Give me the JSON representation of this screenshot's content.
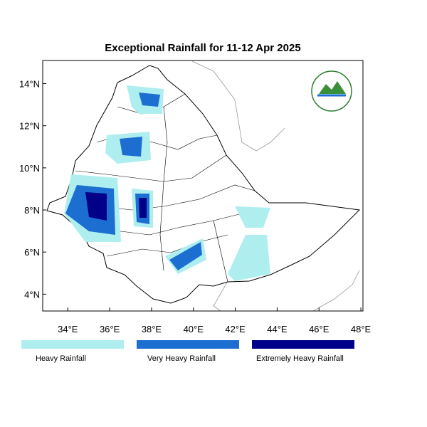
{
  "map": {
    "title": "Exceptional Rainfall for 11-12 Apr 2025",
    "xlim": [
      32.8,
      48.1
    ],
    "ylim": [
      3.2,
      15.1
    ],
    "xticks": [
      {
        "value": 34,
        "label": "34°E"
      },
      {
        "value": 36,
        "label": "36°E"
      },
      {
        "value": 38,
        "label": "38°E"
      },
      {
        "value": 40,
        "label": "40°E"
      },
      {
        "value": 42,
        "label": "42°E"
      },
      {
        "value": 44,
        "label": "44°E"
      },
      {
        "value": 46,
        "label": "46°E"
      },
      {
        "value": 48,
        "label": "48°E"
      }
    ],
    "yticks": [
      {
        "value": 4,
        "label": "4°N"
      },
      {
        "value": 6,
        "label": "6°N"
      },
      {
        "value": 8,
        "label": "8°N"
      },
      {
        "value": 10,
        "label": "10°N"
      },
      {
        "value": 12,
        "label": "12°N"
      },
      {
        "value": 14,
        "label": "14°N"
      }
    ],
    "legend": [
      {
        "name": "Heavy Rainfall",
        "color": "#aeeeee"
      },
      {
        "name": "Very Heavy Rainfall",
        "color": "#1c6fd1"
      },
      {
        "name": "Extremely Heavy Rainfall",
        "color": "#000088"
      }
    ]
  }
}
